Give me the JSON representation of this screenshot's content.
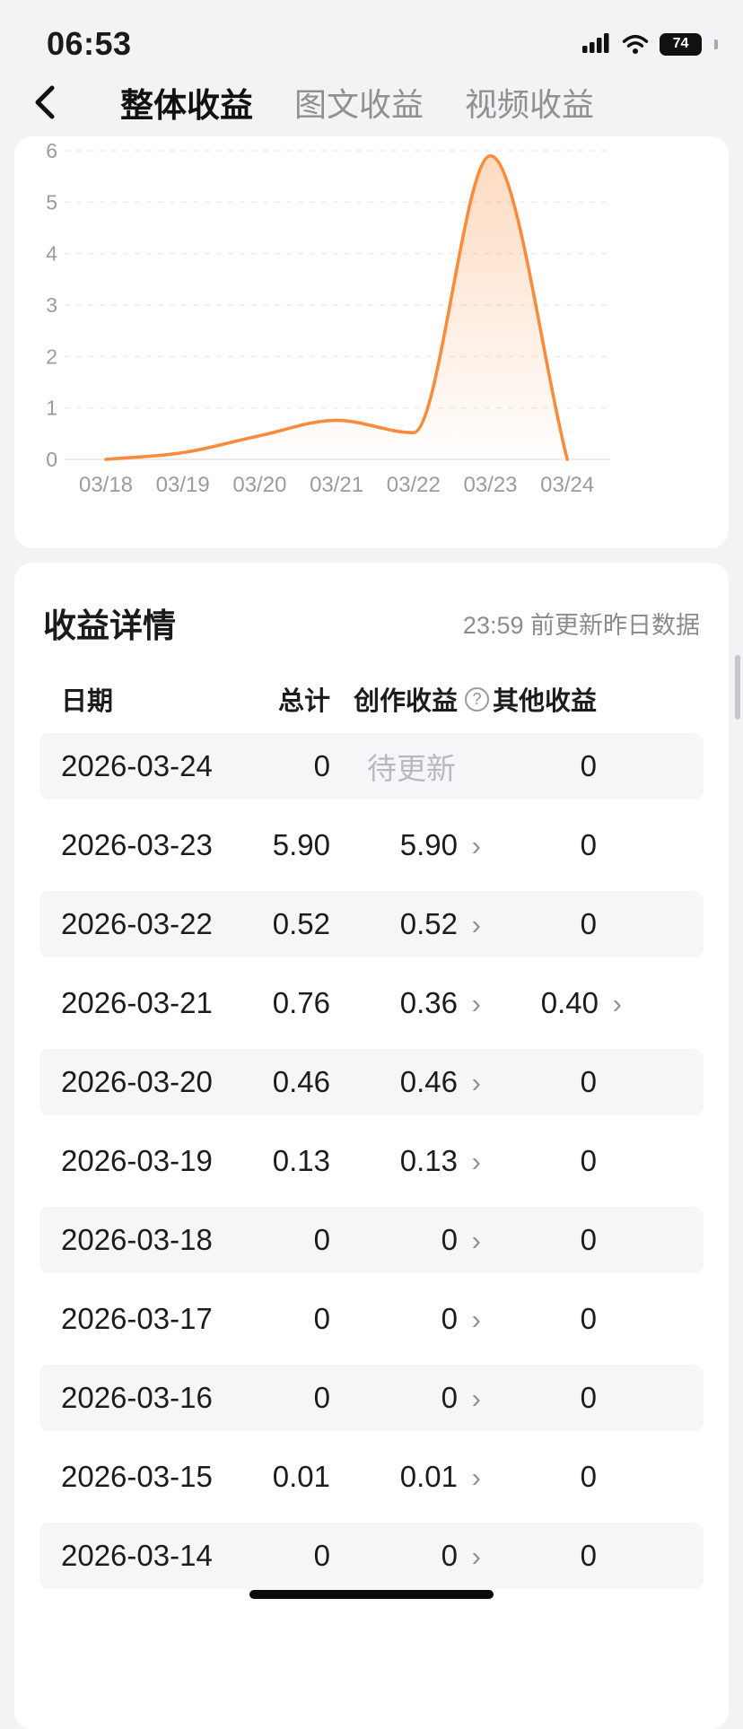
{
  "status_bar": {
    "time": "06:53",
    "battery": "74"
  },
  "nav": {
    "tabs": [
      {
        "label": "整体收益",
        "active": true
      },
      {
        "label": "图文收益",
        "active": false
      },
      {
        "label": "视频收益",
        "active": false
      }
    ]
  },
  "chart_data": {
    "type": "area",
    "x": [
      "03/18",
      "03/19",
      "03/20",
      "03/21",
      "03/22",
      "03/23",
      "03/24"
    ],
    "values": [
      0,
      0.13,
      0.46,
      0.76,
      0.52,
      5.9,
      0
    ],
    "title": "",
    "xlabel": "",
    "ylabel": "",
    "ylim": [
      0,
      6
    ],
    "yticks": [
      0,
      1,
      2,
      3,
      4,
      5,
      6
    ],
    "grid": true,
    "legend": false,
    "line_color": "#F98C3C",
    "fill_color": "#FB8F3D",
    "tick_color": "#9b9b9c",
    "grid_color": "#ececef"
  },
  "details": {
    "title": "收益详情",
    "update_note": "23:59 前更新昨日数据",
    "columns": [
      "日期",
      "总计",
      "创作收益",
      "其他收益"
    ],
    "help_glyph": "?",
    "chevron_glyph": "›",
    "rows": [
      {
        "date": "2026-03-24",
        "total": "0",
        "creation": "待更新",
        "creation_pending": true,
        "creation_link": false,
        "other": "0",
        "other_link": false
      },
      {
        "date": "2026-03-23",
        "total": "5.90",
        "creation": "5.90",
        "creation_pending": false,
        "creation_link": true,
        "other": "0",
        "other_link": false
      },
      {
        "date": "2026-03-22",
        "total": "0.52",
        "creation": "0.52",
        "creation_pending": false,
        "creation_link": true,
        "other": "0",
        "other_link": false
      },
      {
        "date": "2026-03-21",
        "total": "0.76",
        "creation": "0.36",
        "creation_pending": false,
        "creation_link": true,
        "other": "0.40",
        "other_link": true
      },
      {
        "date": "2026-03-20",
        "total": "0.46",
        "creation": "0.46",
        "creation_pending": false,
        "creation_link": true,
        "other": "0",
        "other_link": false
      },
      {
        "date": "2026-03-19",
        "total": "0.13",
        "creation": "0.13",
        "creation_pending": false,
        "creation_link": true,
        "other": "0",
        "other_link": false
      },
      {
        "date": "2026-03-18",
        "total": "0",
        "creation": "0",
        "creation_pending": false,
        "creation_link": true,
        "other": "0",
        "other_link": false
      },
      {
        "date": "2026-03-17",
        "total": "0",
        "creation": "0",
        "creation_pending": false,
        "creation_link": true,
        "other": "0",
        "other_link": false
      },
      {
        "date": "2026-03-16",
        "total": "0",
        "creation": "0",
        "creation_pending": false,
        "creation_link": true,
        "other": "0",
        "other_link": false
      },
      {
        "date": "2026-03-15",
        "total": "0.01",
        "creation": "0.01",
        "creation_pending": false,
        "creation_link": true,
        "other": "0",
        "other_link": false
      },
      {
        "date": "2026-03-14",
        "total": "0",
        "creation": "0",
        "creation_pending": false,
        "creation_link": true,
        "other": "0",
        "other_link": false
      }
    ]
  }
}
